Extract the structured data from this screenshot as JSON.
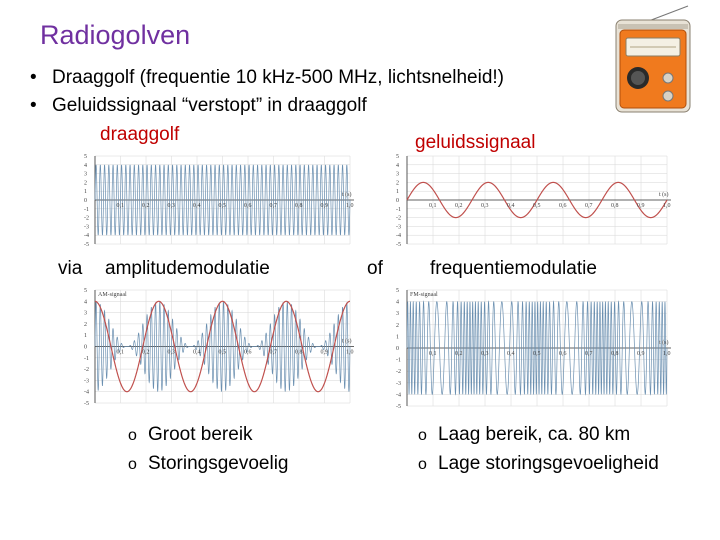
{
  "title": "Radiogolven",
  "bullets": [
    "Draaggolf (frequentie 10 kHz-500 MHz, lichtsnelheid!)",
    "Geluidssignaal “verstopt” in draaggolf"
  ],
  "labels": {
    "carrier": "draaggolf",
    "sound": "geluidssignaal",
    "via": "via",
    "am": "amplitudemodulatie",
    "or": "of",
    "fm": "frequentiemodulatie"
  },
  "am_points": [
    "Groot bereik",
    "Storingsgevoelig"
  ],
  "fm_points": [
    "Laag bereik, ca. 80 km",
    "Lage storingsgevoeligheid"
  ],
  "plot_text": {
    "am_signal": "AM-signaal",
    "fm_signal": "FM-signaal",
    "axis_unit": "t (s)"
  },
  "icons": {
    "radio": "radio-icon"
  },
  "colors": {
    "title": "#7030a0",
    "highlight": "#c00000",
    "wave_blue": "#6a8fb0",
    "wave_red": "#c0504d"
  },
  "chart_data": [
    {
      "type": "line",
      "x_label": "t (s)",
      "x_ticks": [
        "0,1",
        "0,2",
        "0,3",
        "0,4",
        "0,5",
        "0,6",
        "0,7",
        "0,8",
        "0,9",
        "1,0"
      ],
      "y_ticks": [
        "5",
        "4",
        "3",
        "2",
        "1",
        "0",
        "-1",
        "-2",
        "-3",
        "-4",
        "-5"
      ],
      "xlim": [
        0,
        1
      ],
      "ylim": [
        -5,
        5
      ],
      "series": [
        {
          "amplitude": 4,
          "cycles": 60
        }
      ]
    },
    {
      "type": "line",
      "x_label": "t (s)",
      "x_ticks": [
        "0,1",
        "0,2",
        "0,3",
        "0,4",
        "0,5",
        "0,6",
        "0,7",
        "0,8",
        "0,9",
        "1,0"
      ],
      "y_ticks": [
        "5",
        "4",
        "3",
        "2",
        "1",
        "0",
        "-1",
        "-2",
        "-3",
        "-4",
        "-5"
      ],
      "xlim": [
        0,
        1
      ],
      "ylim": [
        -5,
        5
      ],
      "series": [
        {
          "amplitude": 2,
          "cycles": 4
        }
      ]
    },
    {
      "type": "line",
      "x_label": "t (s)",
      "x_ticks": [
        "0,1",
        "0,2",
        "0,3",
        "0,4",
        "0,5",
        "0,6",
        "0,7",
        "0,8",
        "0,9",
        "1,0"
      ],
      "y_ticks": [
        "5",
        "4",
        "3",
        "2",
        "1",
        "0",
        "-1",
        "-2",
        "-3",
        "-4",
        "-5"
      ],
      "xlim": [
        0,
        1
      ],
      "ylim": [
        -5,
        5
      ],
      "series": [
        {
          "amplitude": 4,
          "cycles": 60,
          "modulation_depth": 0.5,
          "modulation_cycles": 4
        },
        {
          "amplitude": 4,
          "cycles": 4,
          "offset": 0
        }
      ]
    },
    {
      "type": "line",
      "x_label": "t (s)",
      "x_ticks": [
        "0,1",
        "0,2",
        "0,3",
        "0,4",
        "0,5",
        "0,6",
        "0,7",
        "0,8",
        "0,9",
        "1,0"
      ],
      "y_ticks": [
        "5",
        "4",
        "3",
        "2",
        "1",
        "0",
        "-1",
        "-2",
        "-3",
        "-4",
        "-5"
      ],
      "xlim": [
        0,
        1
      ],
      "ylim": [
        -5,
        5
      ],
      "series": [
        {
          "amplitude": 4,
          "cycles": 60,
          "fm_deviation": 0.6,
          "modulation_cycles": 4
        }
      ]
    }
  ]
}
